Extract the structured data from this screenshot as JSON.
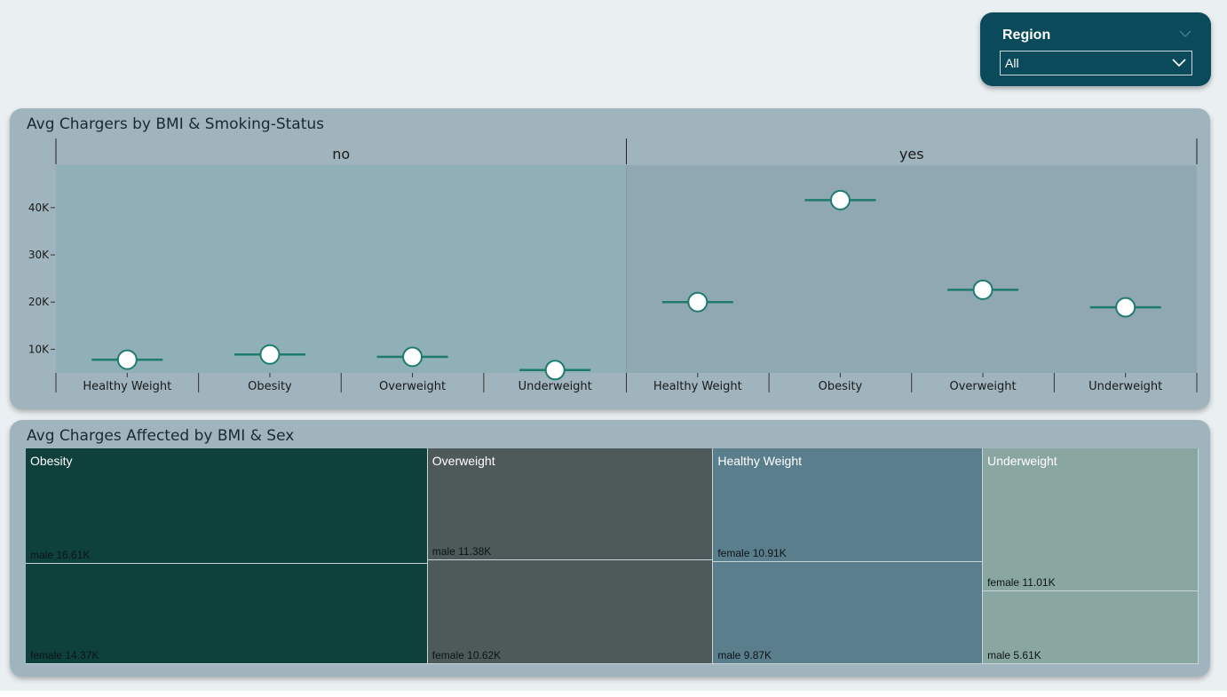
{
  "slicer": {
    "title": "Region",
    "value": "All"
  },
  "chart_data": [
    {
      "type": "scatter",
      "title": "Avg Chargers by BMI & Smoking-Status",
      "panels": [
        "no",
        "yes"
      ],
      "categories": [
        "Healthy Weight",
        "Obesity",
        "Overweight",
        "Underweight"
      ],
      "series": [
        {
          "panel": "no",
          "values": [
            7800,
            8900,
            8400,
            5600
          ]
        },
        {
          "panel": "yes",
          "values": [
            20000,
            41600,
            22600,
            18900
          ]
        }
      ],
      "yticks": [
        "10K",
        "20K",
        "30K",
        "40K"
      ],
      "ytick_values": [
        10000,
        20000,
        30000,
        40000
      ],
      "ylim": [
        5000,
        49000
      ],
      "colors": {
        "marker_line": "#1e7b6e",
        "panel_no": "#8fb0b6",
        "panel_yes": "#8fa8b1"
      }
    },
    {
      "type": "treemap",
      "title": "Avg Charges Affected by BMI & Sex",
      "groups": [
        {
          "name": "Obesity",
          "color": "#0e403c",
          "items": [
            {
              "label": "male 16.61K",
              "value": 16.61
            },
            {
              "label": "female 14.37K",
              "value": 14.37
            }
          ]
        },
        {
          "name": "Overweight",
          "color": "#4e5a59",
          "items": [
            {
              "label": "male 11.38K",
              "value": 11.38
            },
            {
              "label": "female 10.62K",
              "value": 10.62
            }
          ]
        },
        {
          "name": "Healthy Weight",
          "color": "#5b7e8c",
          "items": [
            {
              "label": "female 10.91K",
              "value": 10.91
            },
            {
              "label": "male 9.87K",
              "value": 9.87
            }
          ]
        },
        {
          "name": "Underweight",
          "color": "#8aa6a1",
          "items": [
            {
              "label": "female 11.01K",
              "value": 11.01
            },
            {
              "label": "male 5.61K",
              "value": 5.61
            }
          ]
        }
      ]
    }
  ]
}
